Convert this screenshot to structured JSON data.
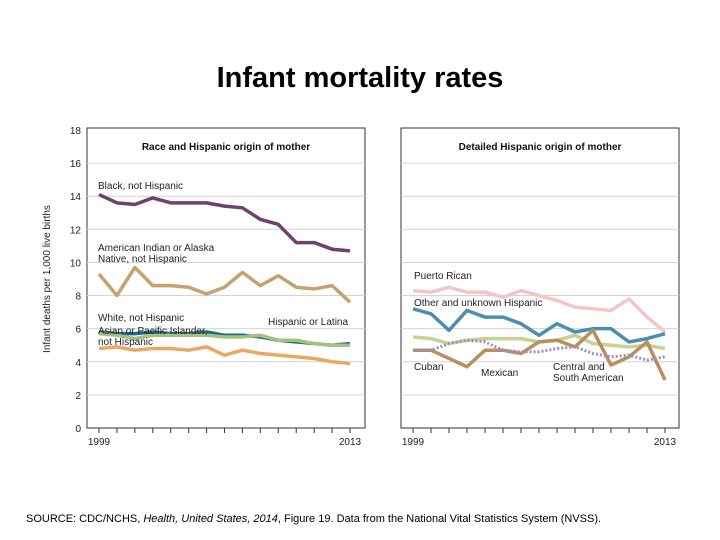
{
  "title": "Infant mortality rates",
  "source": {
    "prefix": "SOURCE: CDC/NCHS, ",
    "italic": "Health, United States, 2014",
    "suffix": ", Figure 19. Data from the National Vital Statistics System (NVSS)."
  },
  "chart_data": [
    {
      "type": "line",
      "title": "Race and Hispanic origin of mother",
      "ylabel": "Infant deaths per 1,000 live births",
      "ylim": [
        0,
        18
      ],
      "yticks": [
        0,
        2,
        4,
        6,
        8,
        10,
        12,
        14,
        16,
        18
      ],
      "x": [
        1999,
        2000,
        2001,
        2002,
        2003,
        2004,
        2005,
        2006,
        2007,
        2008,
        2009,
        2010,
        2011,
        2012,
        2013
      ],
      "xtick_labels": [
        "1999",
        "2013"
      ],
      "grid": true,
      "series": [
        {
          "name": "Black, not Hispanic",
          "color": "#6e416e",
          "values": [
            14.1,
            13.6,
            13.5,
            13.9,
            13.6,
            13.6,
            13.6,
            13.4,
            13.3,
            12.6,
            12.3,
            11.2,
            11.2,
            10.8,
            10.7
          ]
        },
        {
          "name": "American Indian or Alaska Native, not Hispanic",
          "color": "#c4a36f",
          "values": [
            9.3,
            8.0,
            9.7,
            8.6,
            8.6,
            8.5,
            8.1,
            8.5,
            9.4,
            8.6,
            9.2,
            8.5,
            8.4,
            8.6,
            7.6
          ]
        },
        {
          "name": "White, not Hispanic",
          "color": "#1c6e8a",
          "values": [
            5.8,
            5.7,
            5.7,
            5.8,
            5.7,
            5.7,
            5.8,
            5.6,
            5.6,
            5.5,
            5.3,
            5.2,
            5.1,
            5.0,
            5.1
          ]
        },
        {
          "name": "Hispanic or Latina",
          "color": "#a8c07e",
          "values": [
            5.7,
            5.6,
            5.4,
            5.6,
            5.6,
            5.6,
            5.6,
            5.5,
            5.5,
            5.6,
            5.3,
            5.3,
            5.1,
            5.0,
            5.0
          ]
        },
        {
          "name": "Asian or Pacific Islander, not Hispanic",
          "color": "#eaa862",
          "values": [
            4.8,
            4.9,
            4.7,
            4.8,
            4.8,
            4.7,
            4.9,
            4.4,
            4.7,
            4.5,
            4.4,
            4.3,
            4.2,
            4.0,
            3.9
          ]
        }
      ]
    },
    {
      "type": "line",
      "title": "Detailed Hispanic origin of mother",
      "ylim": [
        0,
        18
      ],
      "x": [
        1999,
        2000,
        2001,
        2002,
        2003,
        2004,
        2005,
        2006,
        2007,
        2008,
        2009,
        2010,
        2011,
        2012,
        2013
      ],
      "xtick_labels": [
        "1999",
        "2013"
      ],
      "grid": true,
      "series": [
        {
          "name": "Puerto Rican",
          "color": "#f3c6c6",
          "values": [
            8.3,
            8.2,
            8.5,
            8.2,
            8.2,
            7.9,
            8.3,
            8.0,
            7.7,
            7.3,
            7.2,
            7.1,
            7.8,
            6.7,
            5.8
          ]
        },
        {
          "name": "Other and unknown Hispanic",
          "color": "#4a8fb2",
          "values": [
            7.2,
            6.9,
            5.9,
            7.1,
            6.7,
            6.7,
            6.3,
            5.6,
            6.3,
            5.8,
            6.0,
            6.0,
            5.2,
            5.4,
            5.7
          ]
        },
        {
          "name": "Mexican",
          "color": "#c6d292",
          "values": [
            5.5,
            5.4,
            5.1,
            5.3,
            5.4,
            5.4,
            5.4,
            5.2,
            5.3,
            5.6,
            5.1,
            5.0,
            4.9,
            5.0,
            4.8
          ]
        },
        {
          "name": "Cuban",
          "color": "#b98f5c",
          "values": [
            4.7,
            4.7,
            4.2,
            3.7,
            4.7,
            4.7,
            4.5,
            5.2,
            5.3,
            4.9,
            5.9,
            3.8,
            4.3,
            5.2,
            2.9
          ]
        },
        {
          "name": "Central and South American",
          "color": "#9d8fbb",
          "dashed": true,
          "values": [
            4.7,
            4.7,
            5.1,
            5.3,
            5.2,
            4.7,
            4.6,
            4.6,
            4.8,
            4.9,
            4.5,
            4.3,
            4.4,
            4.1,
            4.3
          ]
        }
      ]
    }
  ]
}
